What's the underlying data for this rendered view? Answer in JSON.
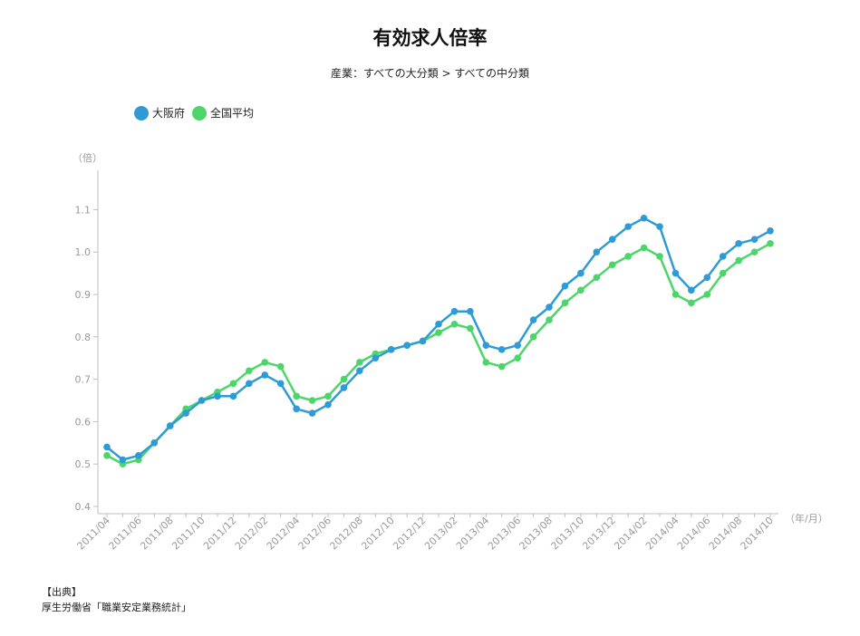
{
  "chart_data": {
    "type": "line",
    "title": "有効求人倍率",
    "subtitle": "産業：すべての大分類 > すべての中分類",
    "ylabel": "（倍）",
    "xlabel": "（年/月）",
    "ylim": [
      0.4,
      1.15
    ],
    "yticks": [
      "0.4",
      "0.5",
      "0.6",
      "0.7",
      "0.8",
      "0.9",
      "1.0",
      "1.1"
    ],
    "legend_position": "top-left",
    "grid": false,
    "x": [
      "2011/04",
      "2011/05",
      "2011/06",
      "2011/07",
      "2011/08",
      "2011/09",
      "2011/10",
      "2011/11",
      "2011/12",
      "2012/01",
      "2012/02",
      "2012/03",
      "2012/04",
      "2012/05",
      "2012/06",
      "2012/07",
      "2012/08",
      "2012/09",
      "2012/10",
      "2012/11",
      "2012/12",
      "2013/01",
      "2013/02",
      "2013/03",
      "2013/04",
      "2013/05",
      "2013/06",
      "2013/07",
      "2013/08",
      "2013/09",
      "2013/10",
      "2013/11",
      "2013/12",
      "2014/01",
      "2014/02",
      "2014/03",
      "2014/04",
      "2014/05",
      "2014/06",
      "2014/07",
      "2014/08",
      "2014/09",
      "2014/10"
    ],
    "x_tick_labels": [
      "2011/04",
      "2011/06",
      "2011/08",
      "2011/10",
      "2011/12",
      "2012/02",
      "2012/04",
      "2012/06",
      "2012/08",
      "2012/10",
      "2012/12",
      "2013/02",
      "2013/04",
      "2013/06",
      "2013/08",
      "2013/10",
      "2013/12",
      "2014/02",
      "2014/04",
      "2014/06",
      "2014/08",
      "2014/10"
    ],
    "series": [
      {
        "name": "大阪府",
        "color": "#2e9bd6",
        "values": [
          0.54,
          0.51,
          0.52,
          0.55,
          0.59,
          0.62,
          0.65,
          0.66,
          0.66,
          0.69,
          0.71,
          0.69,
          0.63,
          0.62,
          0.64,
          0.68,
          0.72,
          0.75,
          0.77,
          0.78,
          0.79,
          0.83,
          0.86,
          0.86,
          0.78,
          0.77,
          0.78,
          0.84,
          0.87,
          0.92,
          0.95,
          1.0,
          1.03,
          1.06,
          1.08,
          1.06,
          0.95,
          0.91,
          0.94,
          0.99,
          1.02,
          1.03,
          1.05
        ]
      },
      {
        "name": "全国平均",
        "color": "#4cd66a",
        "values": [
          0.52,
          0.5,
          0.51,
          0.55,
          0.59,
          0.63,
          0.65,
          0.67,
          0.69,
          0.72,
          0.74,
          0.73,
          0.66,
          0.65,
          0.66,
          0.7,
          0.74,
          0.76,
          0.77,
          0.78,
          0.79,
          0.81,
          0.83,
          0.82,
          0.74,
          0.73,
          0.75,
          0.8,
          0.84,
          0.88,
          0.91,
          0.94,
          0.97,
          0.99,
          1.01,
          0.99,
          0.9,
          0.88,
          0.9,
          0.95,
          0.98,
          1.0,
          1.02
        ]
      }
    ]
  },
  "source": {
    "heading": "【出典】",
    "text": "厚生労働省「職業安定業務統計」"
  }
}
